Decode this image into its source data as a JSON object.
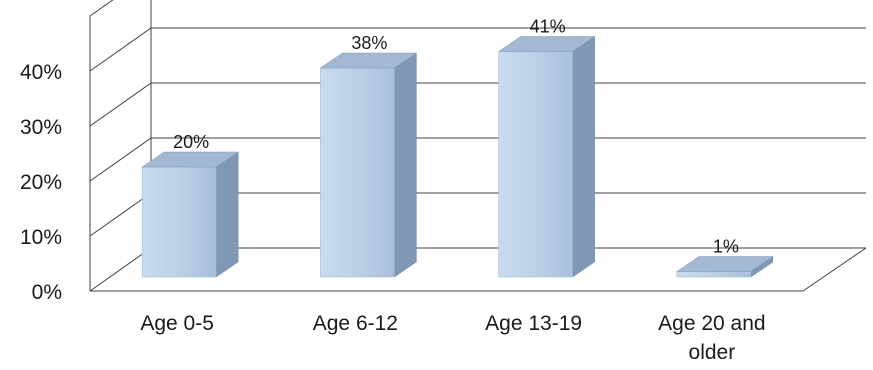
{
  "chart_data": {
    "type": "bar",
    "style": "3d-column",
    "categories": [
      "Age 0-5",
      "Age 6-12",
      "Age 13-19",
      "Age 20 and older"
    ],
    "category_lines": [
      [
        "Age 0-5"
      ],
      [
        "Age 6-12"
      ],
      [
        "Age 13-19"
      ],
      [
        "Age 20 and",
        "older"
      ]
    ],
    "values": [
      20,
      38,
      41,
      1
    ],
    "data_labels": [
      "20%",
      "38%",
      "41%",
      "1%"
    ],
    "yticks": [
      "0%",
      "10%",
      "20%",
      "30%",
      "40%"
    ],
    "ylim": [
      0,
      50
    ],
    "title": "",
    "xlabel": "",
    "ylabel": "",
    "grid": true,
    "legend": "none",
    "colors": {
      "bar_front": "#b9cde5",
      "bar_side": "#7f98b3",
      "bar_top": "#a3b9d3",
      "grid": "#404040"
    }
  }
}
